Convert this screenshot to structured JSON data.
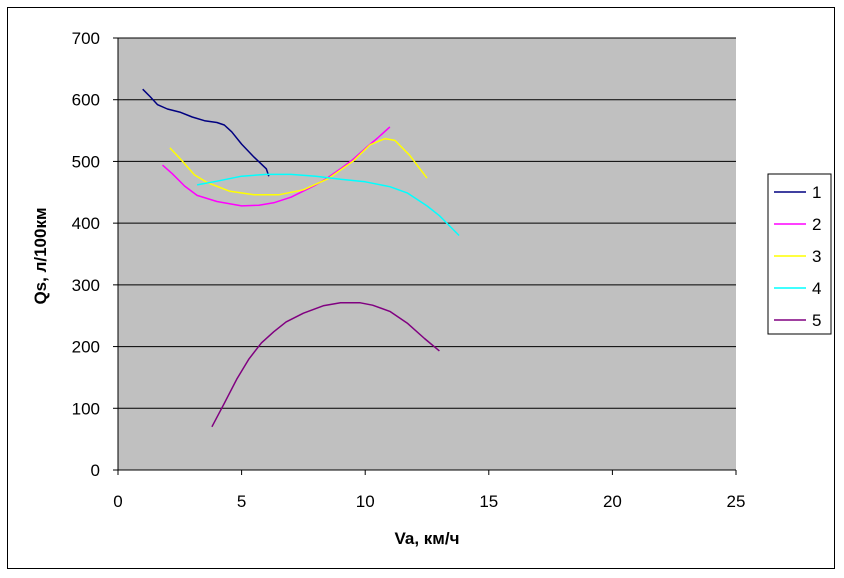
{
  "chart_data": {
    "type": "line",
    "title": "",
    "xlabel": "Va, км/ч",
    "ylabel": "Qs, л/100км",
    "xlim": [
      0,
      25
    ],
    "ylim": [
      0,
      700
    ],
    "x_ticks": [
      0,
      5,
      10,
      15,
      20,
      25
    ],
    "y_ticks": [
      0,
      100,
      200,
      300,
      400,
      500,
      600,
      700
    ],
    "grid": "horizontal",
    "plot_background": "#c0c0c0",
    "legend_position": "right",
    "series": [
      {
        "name": "1",
        "color": "#000080",
        "points": [
          [
            1.0,
            617
          ],
          [
            1.3,
            605
          ],
          [
            1.6,
            592
          ],
          [
            2.0,
            585
          ],
          [
            2.5,
            580
          ],
          [
            3.0,
            572
          ],
          [
            3.5,
            566
          ],
          [
            4.0,
            563
          ],
          [
            4.3,
            559
          ],
          [
            4.6,
            548
          ],
          [
            5.0,
            528
          ],
          [
            5.5,
            507
          ],
          [
            6.0,
            488
          ],
          [
            6.1,
            476
          ]
        ]
      },
      {
        "name": "2",
        "color": "#ff00ff",
        "points": [
          [
            1.8,
            494
          ],
          [
            2.2,
            480
          ],
          [
            2.7,
            460
          ],
          [
            3.2,
            445
          ],
          [
            4.0,
            435
          ],
          [
            5.0,
            428
          ],
          [
            5.7,
            429
          ],
          [
            6.3,
            433
          ],
          [
            7.0,
            442
          ],
          [
            7.5,
            452
          ],
          [
            8.0,
            462
          ],
          [
            8.5,
            474
          ],
          [
            9.0,
            488
          ],
          [
            9.5,
            503
          ],
          [
            10.0,
            521
          ],
          [
            10.5,
            538
          ],
          [
            11.0,
            556
          ]
        ]
      },
      {
        "name": "3",
        "color": "#ffff00",
        "points": [
          [
            2.1,
            522
          ],
          [
            2.5,
            505
          ],
          [
            3.1,
            478
          ],
          [
            3.6,
            466
          ],
          [
            4.5,
            452
          ],
          [
            5.5,
            446
          ],
          [
            6.5,
            446
          ],
          [
            7.5,
            454
          ],
          [
            8.5,
            472
          ],
          [
            9.5,
            500
          ],
          [
            10.2,
            527
          ],
          [
            10.8,
            537
          ],
          [
            11.2,
            534
          ],
          [
            11.8,
            510
          ],
          [
            12.5,
            473
          ]
        ]
      },
      {
        "name": "4",
        "color": "#00ffff",
        "points": [
          [
            3.2,
            462
          ],
          [
            4.0,
            468
          ],
          [
            5.0,
            476
          ],
          [
            6.0,
            479
          ],
          [
            7.0,
            479
          ],
          [
            8.0,
            476
          ],
          [
            9.0,
            471
          ],
          [
            10.0,
            467
          ],
          [
            11.0,
            459
          ],
          [
            11.7,
            449
          ],
          [
            12.5,
            428
          ],
          [
            13.0,
            412
          ],
          [
            13.3,
            400
          ],
          [
            13.8,
            380
          ]
        ]
      },
      {
        "name": "5",
        "color": "#800080",
        "points": [
          [
            3.8,
            70
          ],
          [
            4.3,
            108
          ],
          [
            4.8,
            147
          ],
          [
            5.3,
            180
          ],
          [
            5.8,
            206
          ],
          [
            6.3,
            224
          ],
          [
            6.8,
            240
          ],
          [
            7.5,
            254
          ],
          [
            8.3,
            266
          ],
          [
            9.0,
            271
          ],
          [
            9.8,
            271
          ],
          [
            10.3,
            267
          ],
          [
            11.0,
            257
          ],
          [
            11.7,
            238
          ],
          [
            12.4,
            213
          ],
          [
            13.0,
            193
          ]
        ]
      }
    ]
  }
}
